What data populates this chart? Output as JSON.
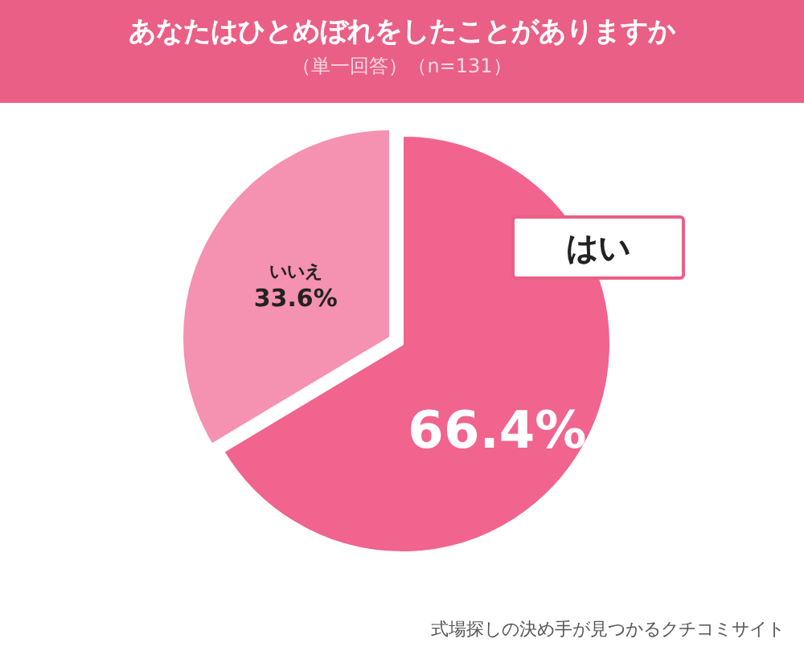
{
  "chart_data": {
    "type": "pie",
    "title": "あなたはひとめぼれをしたことがありますか",
    "subtitle": "（単一回答）（n=131）",
    "categories": [
      "はい",
      "いいえ"
    ],
    "values": [
      66.4,
      33.6
    ],
    "value_labels": [
      "66.4%",
      "33.6%"
    ],
    "colors": [
      "#f0648d",
      "#f591b1"
    ],
    "annotations": [
      "式場探しの決め手が見つかるクチコミサイト"
    ]
  }
}
